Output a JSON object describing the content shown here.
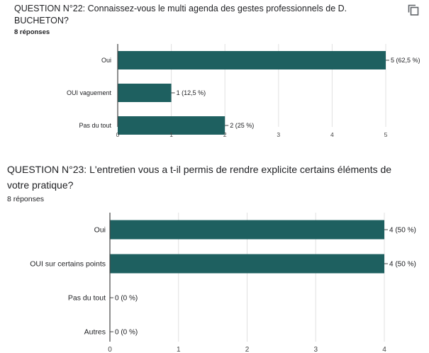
{
  "icons": {
    "copy": "copy-icon"
  },
  "colors": {
    "bar": "#1e6060",
    "grid": "#e0e0e0",
    "axis": "#444444"
  },
  "questions": [
    {
      "title": "QUESTION N°22: Connaissez-vous le multi agenda des gestes professionnels de D. BUCHETON?",
      "response_count": "8 réponses"
    },
    {
      "title": "QUESTION N°23: L'entretien vous a t-il permis de rendre explicite certains éléments de votre pratique?",
      "response_count": "8 réponses"
    }
  ],
  "chart_data": [
    {
      "type": "bar",
      "orientation": "horizontal",
      "categories": [
        "Oui",
        "OUI vaguement",
        "Pas du tout"
      ],
      "values": [
        5,
        1,
        2
      ],
      "value_labels": [
        "5 (62,5 %)",
        "1 (12,5 %)",
        "2 (25 %)"
      ],
      "xlim": [
        0,
        5
      ],
      "xticks": [
        0,
        1,
        2,
        3,
        4,
        5
      ],
      "grid": true
    },
    {
      "type": "bar",
      "orientation": "horizontal",
      "categories": [
        "Oui",
        "OUI sur certains points",
        "Pas du tout",
        "Autres"
      ],
      "values": [
        4,
        4,
        0,
        0
      ],
      "value_labels": [
        "4 (50 %)",
        "4 (50 %)",
        "0 (0 %)",
        "0 (0 %)"
      ],
      "xlim": [
        0,
        4
      ],
      "xticks": [
        0,
        1,
        2,
        3,
        4
      ],
      "grid": true
    }
  ]
}
